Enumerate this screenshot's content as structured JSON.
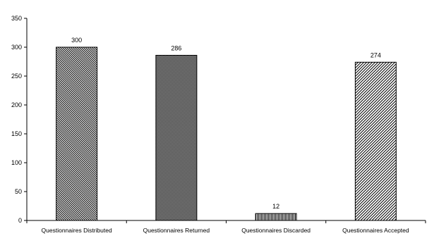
{
  "chart_data": {
    "type": "bar",
    "categories": [
      "Questionnaires Distributed",
      "Questionnaires Returned",
      "Questionnaires Discarded",
      "Questionnaires Accepted"
    ],
    "values": [
      300,
      286,
      12,
      274
    ],
    "data_labels": [
      "300",
      "286",
      "12",
      "274"
    ],
    "bar_patterns": [
      "diagonal-dense",
      "diagonal-fine",
      "vertical",
      "diagonal-wide"
    ],
    "bar_color": "#000000",
    "title": "",
    "xlabel": "",
    "ylabel": "",
    "ylim": [
      0,
      350
    ],
    "yticks": [
      0,
      50,
      100,
      150,
      200,
      250,
      300,
      350
    ],
    "grid": false,
    "legend": "none"
  }
}
